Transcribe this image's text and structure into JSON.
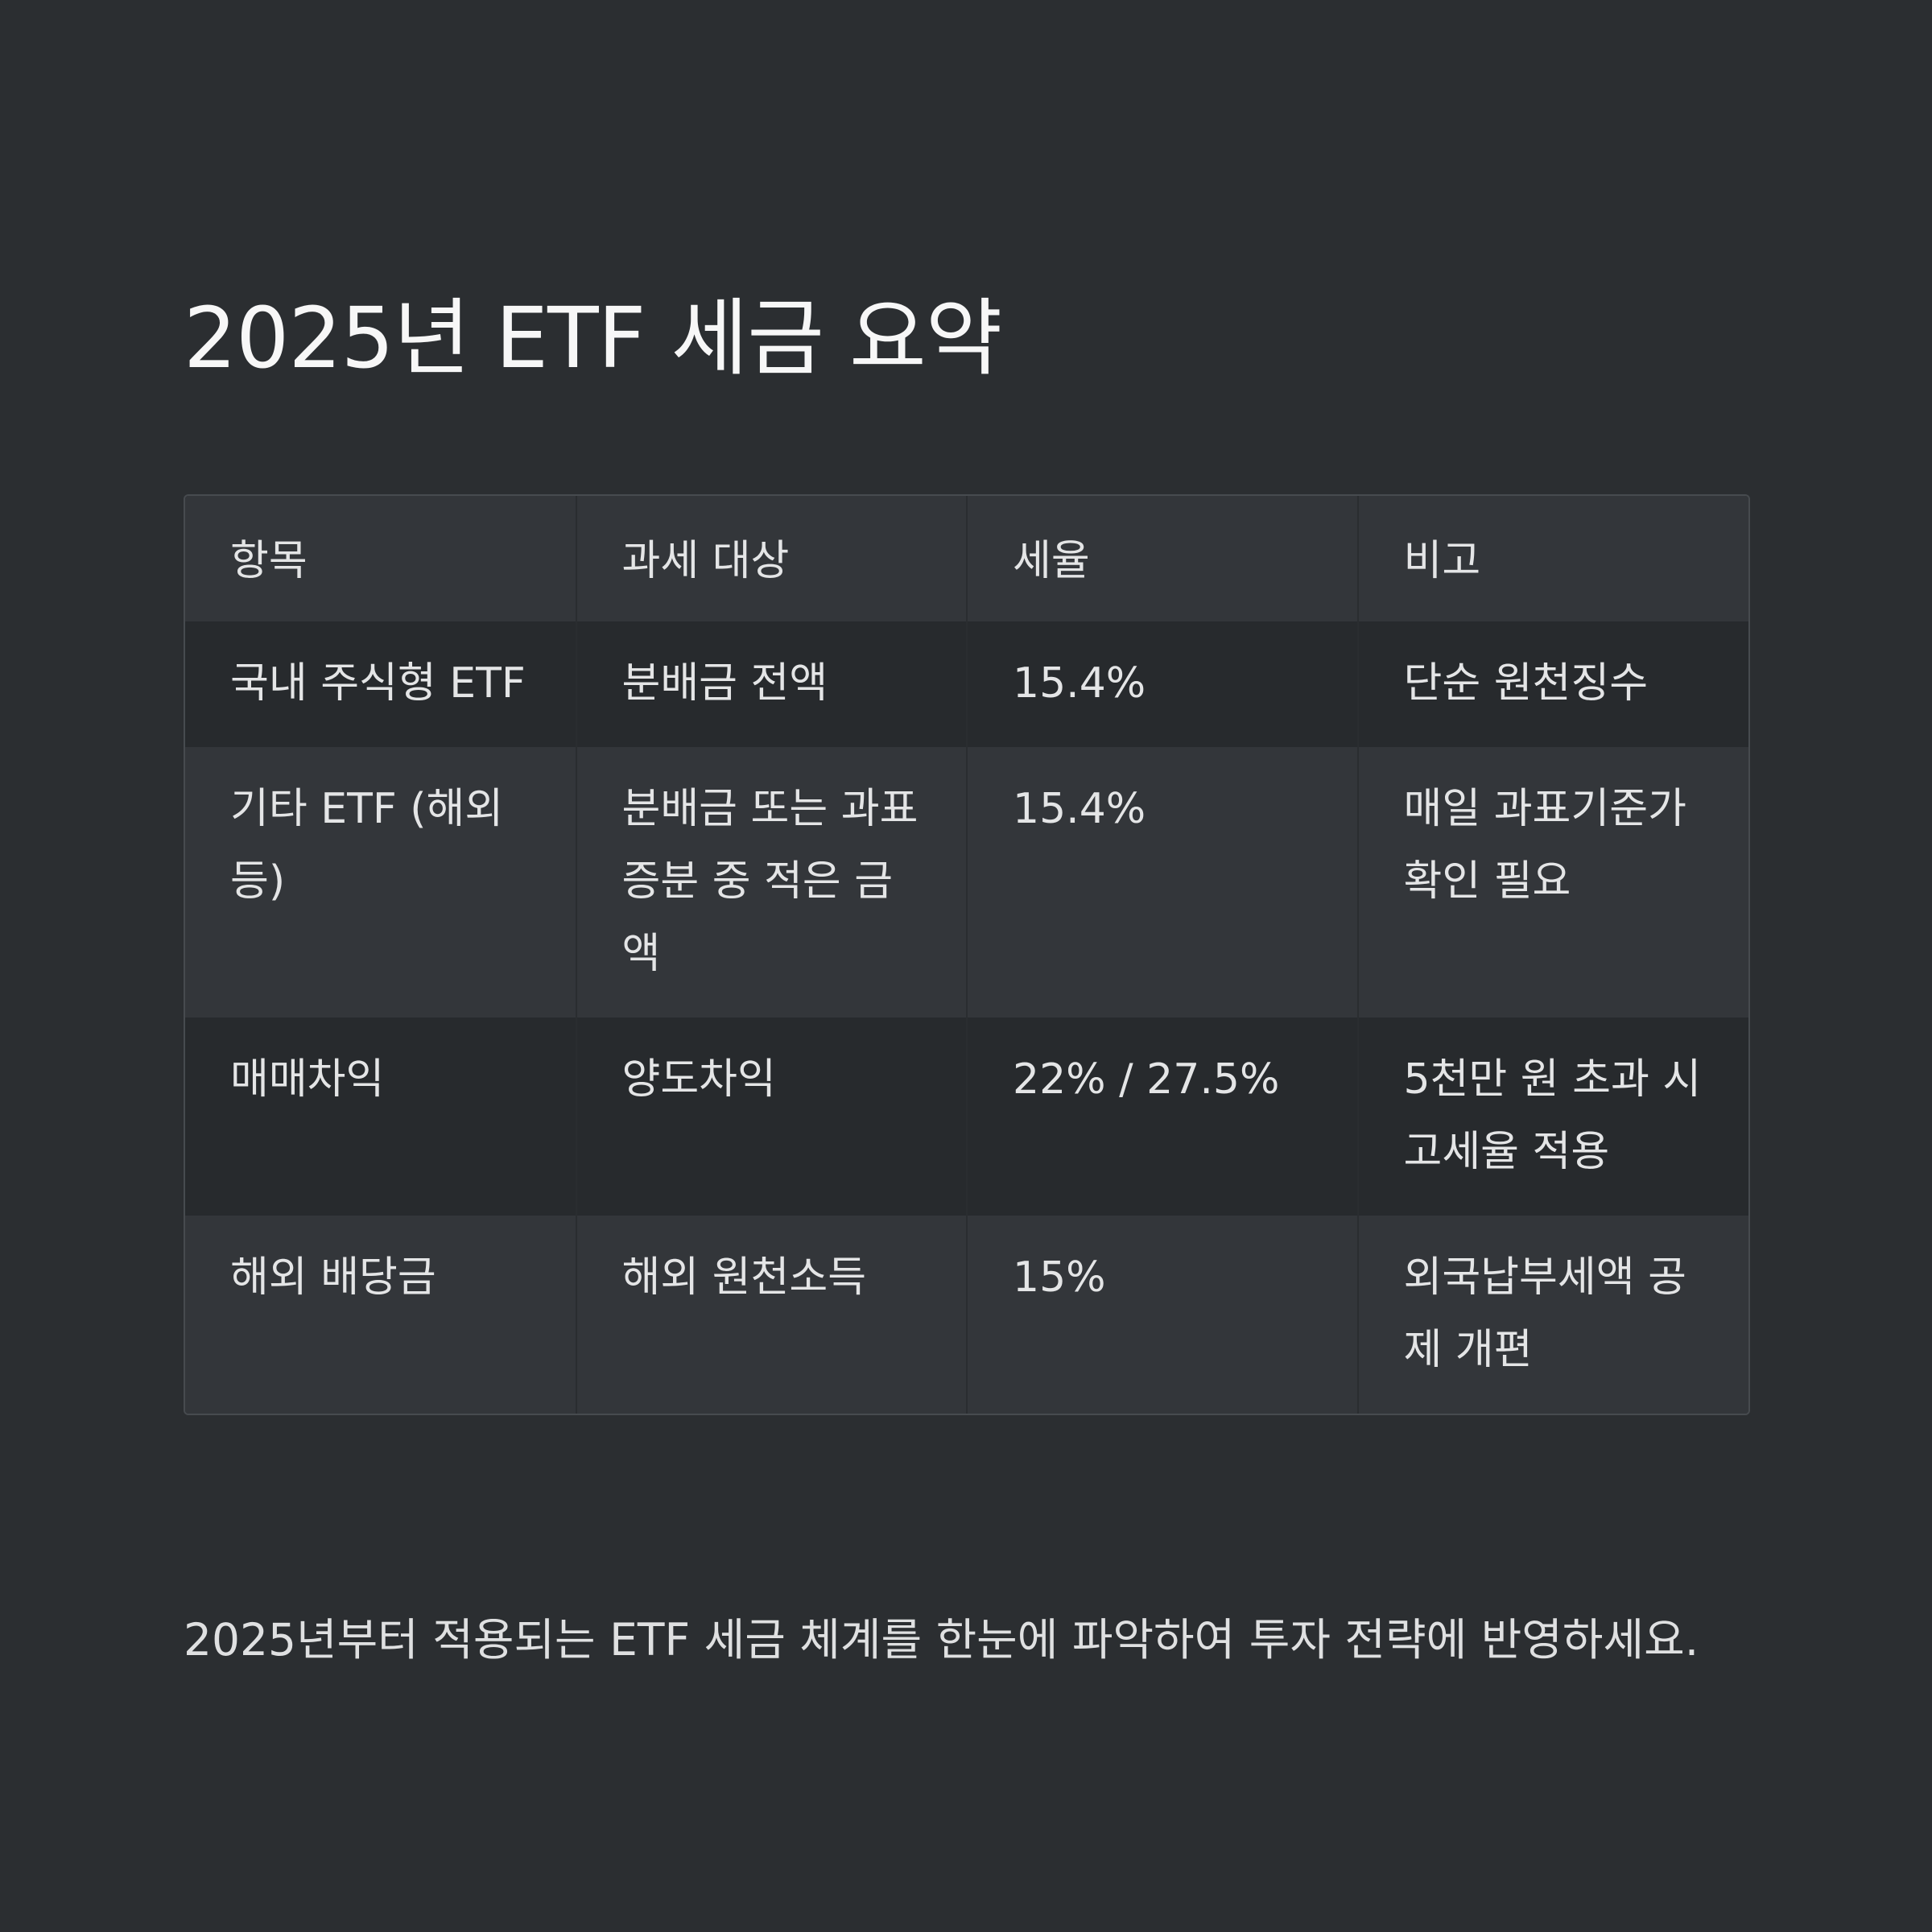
{
  "title": "2025년 ETF 세금 요약",
  "table": {
    "headers": [
      "항목",
      "과세 대상",
      "세율",
      "비고"
    ],
    "rows": [
      [
        "국내 주식형 ETF",
        "분배금 전액",
        "15.4%",
        "단순 원천징수"
      ],
      [
        "기타 ETF (해외 등)",
        "분배금 또는 과표증분 중 적은 금액",
        "15.4%",
        "매일 과표기준가 확인 필요"
      ],
      [
        "매매차익",
        "양도차익",
        "22% / 27.5%",
        "5천만 원 초과 시 고세율 적용"
      ],
      [
        "해외 배당금",
        "해외 원천소득",
        "15%",
        "외국납부세액 공제 개편"
      ]
    ]
  },
  "footnote": "2025년부터 적용되는 ETF 세금 체계를 한눈에 파악하여 투자 전략에 반영하세요.",
  "colors": {
    "background": "#2b2e31",
    "header_row": "#33363a",
    "row_dark": "#272a2d",
    "row_light": "#33363a",
    "border": "#474b4f",
    "text": "#e4e5e6",
    "title": "#f7f7f7"
  }
}
